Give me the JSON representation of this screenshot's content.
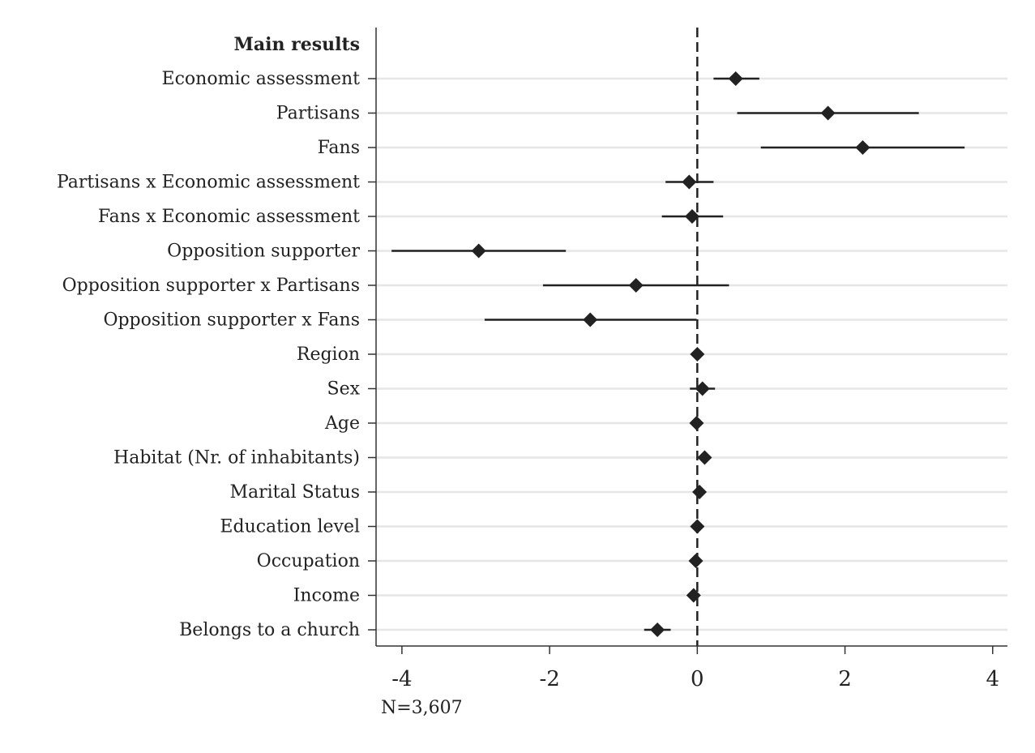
{
  "chart_data": {
    "type": "coefficient-plot",
    "header": "Main results",
    "note": "N=3,607",
    "xlim": [
      -4.35,
      4.2
    ],
    "xticks": [
      -4,
      -2,
      0,
      2,
      4
    ],
    "xtick_labels": [
      "-4",
      "-2",
      "0",
      "2",
      "4"
    ],
    "reference_line": 0,
    "grid": "horizontal",
    "marker": "diamond",
    "color": "#222222",
    "rows": [
      {
        "label": "Economic assessment",
        "estimate": 0.52,
        "ci": [
          0.22,
          0.84
        ]
      },
      {
        "label": "Partisans",
        "estimate": 1.77,
        "ci": [
          0.54,
          3.0
        ]
      },
      {
        "label": "Fans",
        "estimate": 2.24,
        "ci": [
          0.86,
          3.62
        ]
      },
      {
        "label": "Partisans x Economic assessment",
        "estimate": -0.11,
        "ci": [
          -0.43,
          0.22
        ]
      },
      {
        "label": "Fans x Economic assessment",
        "estimate": -0.07,
        "ci": [
          -0.48,
          0.35
        ]
      },
      {
        "label": "Opposition supporter",
        "estimate": -2.96,
        "ci": [
          -4.14,
          -1.78
        ]
      },
      {
        "label": "Opposition supporter x Partisans",
        "estimate": -0.83,
        "ci": [
          -2.09,
          0.43
        ]
      },
      {
        "label": "Opposition supporter x Fans",
        "estimate": -1.45,
        "ci": [
          -2.88,
          -0.01
        ]
      },
      {
        "label": "Region",
        "estimate": 0.0,
        "ci": [
          -0.02,
          0.02
        ]
      },
      {
        "label": "Sex",
        "estimate": 0.07,
        "ci": [
          -0.1,
          0.24
        ]
      },
      {
        "label": "Age",
        "estimate": -0.01,
        "ci": [
          -0.02,
          0.01
        ]
      },
      {
        "label": "Habitat (Nr. of inhabitants)",
        "estimate": 0.1,
        "ci": [
          0.03,
          0.17
        ]
      },
      {
        "label": "Marital Status",
        "estimate": 0.03,
        "ci": [
          -0.02,
          0.08
        ]
      },
      {
        "label": "Education level",
        "estimate": 0.0,
        "ci": [
          -0.03,
          0.03
        ]
      },
      {
        "label": "Occupation",
        "estimate": -0.02,
        "ci": [
          -0.05,
          0.01
        ]
      },
      {
        "label": "Income",
        "estimate": -0.05,
        "ci": [
          -0.09,
          -0.01
        ]
      },
      {
        "label": "Belongs to a church",
        "estimate": -0.54,
        "ci": [
          -0.72,
          -0.36
        ]
      }
    ]
  }
}
